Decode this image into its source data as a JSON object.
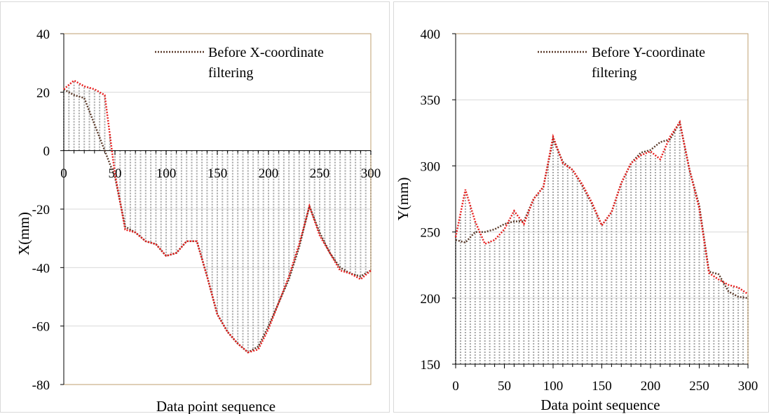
{
  "chart_data": [
    {
      "type": "line",
      "title": "",
      "xlabel": "Data point sequence",
      "ylabel": "X(mm)",
      "xlim": [
        0,
        300
      ],
      "ylim": [
        -80,
        40
      ],
      "xticks": [
        "0",
        "50",
        "100",
        "150",
        "200",
        "250",
        "300"
      ],
      "yticks": [
        "40",
        "20",
        "0",
        "-20",
        "-40",
        "-60",
        "-80"
      ],
      "x_axis_at": 0,
      "grid": true,
      "legend_position": "top-right",
      "colors": {
        "before": "#5a3a2a",
        "after": "#e8201f",
        "drop": "#a6a6a6",
        "grid": "#d9d9d9",
        "frame": "#bf9f6f"
      },
      "x": [
        0,
        10,
        20,
        30,
        40,
        50,
        60,
        70,
        80,
        90,
        100,
        110,
        120,
        130,
        140,
        150,
        160,
        170,
        180,
        190,
        200,
        210,
        220,
        230,
        240,
        250,
        260,
        270,
        280,
        290,
        300
      ],
      "series": [
        {
          "name": "Before X-coordinate filtering",
          "values": [
            21,
            19,
            18,
            9,
            0,
            -9,
            -26,
            -28,
            -31,
            -32,
            -36,
            -35,
            -31,
            -31,
            -43,
            -56,
            -62,
            -66,
            -69,
            -67,
            -60,
            -52,
            -44,
            -33,
            -19,
            -28,
            -35,
            -40,
            -42,
            -43,
            -41
          ]
        },
        {
          "name": "",
          "values": [
            21,
            24,
            22,
            21,
            19,
            -8,
            -27,
            -28,
            -31,
            -32,
            -36,
            -35,
            -31,
            -31,
            -43,
            -56,
            -62,
            -66,
            -69,
            -68,
            -61,
            -52,
            -43,
            -32,
            -19,
            -29,
            -35,
            -41,
            -42,
            -44,
            -41
          ]
        }
      ]
    },
    {
      "type": "line",
      "title": "",
      "xlabel": "Data point sequence",
      "ylabel": "Y(mm)",
      "xlim": [
        0,
        300
      ],
      "ylim": [
        150,
        400
      ],
      "xticks": [
        "0",
        "50",
        "100",
        "150",
        "200",
        "250",
        "300"
      ],
      "yticks": [
        "400",
        "350",
        "300",
        "250",
        "200",
        "150"
      ],
      "x_axis_at": 150,
      "grid": true,
      "legend_position": "top-right",
      "colors": {
        "before": "#5a3a2a",
        "after": "#e8201f",
        "drop": "#a6a6a6",
        "grid": "#d9d9d9",
        "frame": "#bf9f6f"
      },
      "x": [
        0,
        10,
        20,
        30,
        40,
        50,
        60,
        70,
        80,
        90,
        100,
        110,
        120,
        130,
        140,
        150,
        160,
        170,
        180,
        190,
        200,
        210,
        220,
        230,
        240,
        250,
        260,
        270,
        280,
        290,
        300
      ],
      "series": [
        {
          "name": "Before Y-coordinate filtering",
          "values": [
            244,
            242,
            250,
            250,
            252,
            256,
            258,
            258,
            275,
            284,
            320,
            303,
            297,
            285,
            271,
            255,
            265,
            287,
            302,
            310,
            312,
            318,
            320,
            333,
            297,
            270,
            220,
            218,
            205,
            201,
            200
          ]
        },
        {
          "name": "",
          "values": [
            246,
            282,
            258,
            241,
            244,
            252,
            266,
            256,
            275,
            284,
            322,
            302,
            297,
            286,
            272,
            255,
            265,
            287,
            302,
            308,
            311,
            305,
            322,
            333,
            297,
            268,
            219,
            214,
            210,
            208,
            203
          ]
        }
      ]
    }
  ]
}
